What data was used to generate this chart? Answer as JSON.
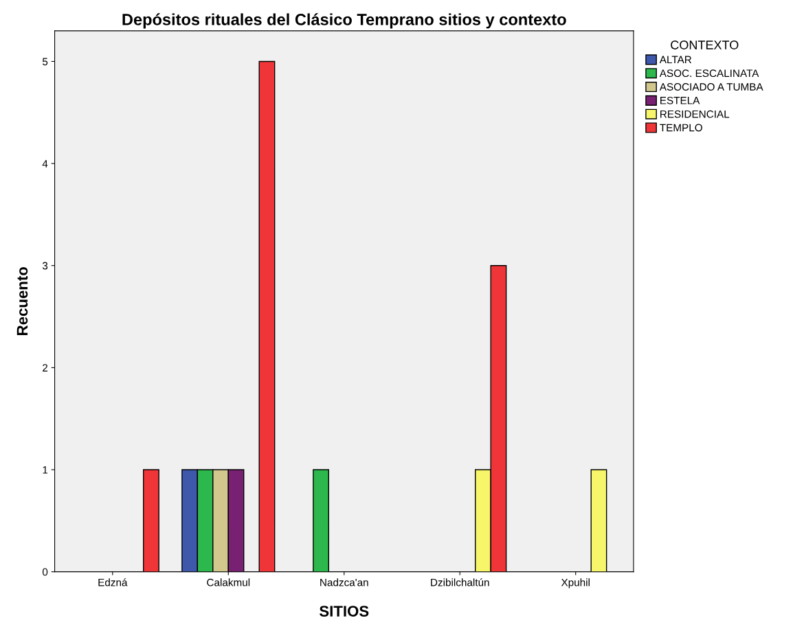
{
  "chart_data": {
    "type": "bar",
    "title": "Depósitos rituales del Clásico Temprano sitios y contexto",
    "xlabel": "SITIOS",
    "ylabel": "Recuento",
    "legend_title": "CONTEXTO",
    "categories": [
      "Edzná",
      "Calakmul",
      "Nadzca'an",
      "Dzibilchaltún",
      "Xpuhil"
    ],
    "series": [
      {
        "name": "ALTAR",
        "color": "#3e58ac",
        "values": [
          null,
          1,
          null,
          null,
          null
        ]
      },
      {
        "name": "ASOC. ESCALINATA",
        "color": "#2db84d",
        "values": [
          null,
          1,
          1,
          null,
          null
        ]
      },
      {
        "name": "ASOCIADO A TUMBA",
        "color": "#d2c88e",
        "values": [
          null,
          1,
          null,
          null,
          null
        ]
      },
      {
        "name": "ESTELA",
        "color": "#782172",
        "values": [
          null,
          1,
          null,
          null,
          null
        ]
      },
      {
        "name": "RESIDENCIAL",
        "color": "#f7f56a",
        "values": [
          null,
          null,
          null,
          1,
          1
        ]
      },
      {
        "name": "TEMPLO",
        "color": "#ef3537",
        "values": [
          1,
          5,
          null,
          3,
          null
        ]
      }
    ],
    "ylim": [
      0,
      5.3
    ],
    "yticks": [
      0,
      1,
      2,
      3,
      4,
      5
    ],
    "grid": false,
    "legend": "top right"
  }
}
